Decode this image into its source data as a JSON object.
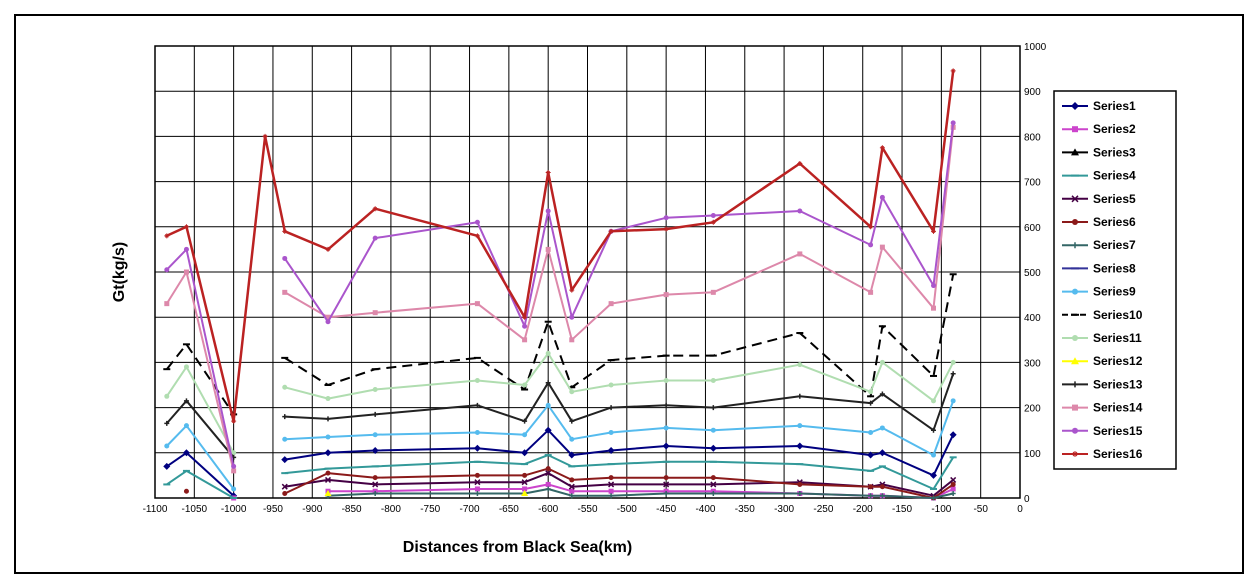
{
  "chart_data": {
    "type": "line",
    "title": "",
    "xlabel": "Distances from Black Sea(km)",
    "ylabel": "Gt(kg/s)",
    "xlim": [
      -1100,
      0
    ],
    "ylim": [
      0,
      1000
    ],
    "x_ticks": [
      -1100,
      -1050,
      -1000,
      -950,
      -900,
      -850,
      -800,
      -750,
      -700,
      -650,
      -600,
      -550,
      -500,
      -450,
      -400,
      -350,
      -300,
      -250,
      -200,
      -150,
      -100,
      -50,
      0
    ],
    "x_tick_labels": [
      "-1100",
      "-1050",
      "-1000",
      "-950",
      "-900",
      "-850",
      "-800",
      "-750",
      "-700",
      "-650",
      "-600",
      "-550",
      "-500",
      "-450",
      "-400",
      "-350",
      "-300",
      "-250",
      "-200",
      "-150",
      "-100",
      "-50",
      "0"
    ],
    "y_ticks": [
      0,
      100,
      200,
      300,
      400,
      500,
      600,
      700,
      800,
      900,
      1000
    ],
    "y_tick_labels": [
      "0",
      "100",
      "200",
      "300",
      "400",
      "500",
      "600",
      "700",
      "800",
      "900",
      "1000"
    ],
    "grid": true,
    "legend_position": "right",
    "x": [
      -1085,
      -1060,
      -1000,
      -960,
      -935,
      -880,
      -820,
      -690,
      -630,
      -600,
      -570,
      -520,
      -450,
      -390,
      -280,
      -190,
      -175,
      -110,
      -85
    ],
    "series": [
      {
        "name": "Series1",
        "color": "#000080",
        "marker": "diamond",
        "values": [
          70,
          100,
          5,
          null,
          85,
          100,
          105,
          110,
          100,
          150,
          95,
          105,
          115,
          110,
          115,
          95,
          100,
          50,
          140
        ]
      },
      {
        "name": "Series2",
        "color": "#cc44cc",
        "marker": "square",
        "values": [
          null,
          null,
          0,
          null,
          null,
          15,
          15,
          20,
          20,
          30,
          15,
          15,
          15,
          15,
          10,
          5,
          5,
          0,
          20
        ]
      },
      {
        "name": "Series3",
        "color": "#000000",
        "marker": "triangle",
        "values": [
          null,
          null,
          null,
          null,
          null,
          null,
          null,
          null,
          null,
          null,
          null,
          null,
          null,
          null,
          null,
          null,
          null,
          null,
          null
        ]
      },
      {
        "name": "Series4",
        "color": "#339999",
        "marker": "dash",
        "values": [
          30,
          60,
          0,
          null,
          55,
          65,
          70,
          80,
          75,
          95,
          70,
          75,
          80,
          80,
          75,
          60,
          70,
          20,
          90
        ]
      },
      {
        "name": "Series5",
        "color": "#440044",
        "marker": "cross",
        "values": [
          null,
          null,
          null,
          null,
          25,
          40,
          30,
          35,
          35,
          55,
          25,
          30,
          30,
          30,
          35,
          25,
          30,
          5,
          40
        ]
      },
      {
        "name": "Series6",
        "color": "#8b1a1a",
        "marker": "circle",
        "values": [
          null,
          15,
          null,
          null,
          10,
          55,
          45,
          50,
          50,
          65,
          40,
          45,
          45,
          45,
          30,
          25,
          25,
          0,
          30
        ]
      },
      {
        "name": "Series7",
        "color": "#336666",
        "marker": "plus",
        "values": [
          null,
          null,
          null,
          null,
          null,
          5,
          10,
          10,
          10,
          20,
          5,
          5,
          10,
          10,
          10,
          5,
          5,
          0,
          10
        ]
      },
      {
        "name": "Series8",
        "color": "#333399",
        "marker": "dash",
        "values": [
          null,
          null,
          null,
          null,
          null,
          null,
          null,
          null,
          null,
          null,
          null,
          null,
          null,
          null,
          null,
          null,
          null,
          null,
          null
        ]
      },
      {
        "name": "Series9",
        "color": "#55bbee",
        "marker": "circle",
        "values": [
          115,
          160,
          20,
          null,
          130,
          135,
          140,
          145,
          140,
          205,
          130,
          145,
          155,
          150,
          160,
          145,
          155,
          95,
          215
        ]
      },
      {
        "name": "Series10",
        "color": "#000000",
        "marker": "dash",
        "dashed": true,
        "values": [
          285,
          340,
          185,
          null,
          310,
          250,
          285,
          310,
          240,
          390,
          245,
          305,
          315,
          315,
          365,
          225,
          380,
          270,
          495
        ]
      },
      {
        "name": "Series11",
        "color": "#b0ddb0",
        "marker": "circle",
        "values": [
          225,
          290,
          100,
          null,
          245,
          220,
          240,
          260,
          250,
          320,
          235,
          250,
          260,
          260,
          295,
          235,
          300,
          215,
          300
        ]
      },
      {
        "name": "Series12",
        "color": "#ffff00",
        "marker": "triangle",
        "values": [
          null,
          null,
          null,
          null,
          null,
          10,
          null,
          null,
          10,
          null,
          null,
          null,
          null,
          null,
          null,
          null,
          null,
          null,
          null
        ]
      },
      {
        "name": "Series13",
        "color": "#222222",
        "marker": "plus",
        "values": [
          165,
          215,
          90,
          null,
          180,
          175,
          185,
          205,
          170,
          255,
          170,
          200,
          205,
          200,
          225,
          210,
          230,
          150,
          275
        ]
      },
      {
        "name": "Series14",
        "color": "#dd88aa",
        "marker": "square",
        "values": [
          430,
          500,
          60,
          null,
          455,
          400,
          410,
          430,
          350,
          550,
          350,
          430,
          450,
          455,
          540,
          455,
          555,
          420,
          820
        ]
      },
      {
        "name": "Series15",
        "color": "#aa55cc",
        "marker": "circle",
        "values": [
          505,
          550,
          70,
          null,
          530,
          390,
          575,
          610,
          380,
          635,
          400,
          590,
          620,
          625,
          635,
          560,
          665,
          470,
          830
        ]
      },
      {
        "name": "Series16",
        "color": "#bb2222",
        "marker": "star",
        "values": [
          580,
          600,
          170,
          800,
          590,
          550,
          640,
          580,
          400,
          720,
          460,
          590,
          595,
          610,
          740,
          600,
          775,
          590,
          945
        ]
      }
    ]
  }
}
